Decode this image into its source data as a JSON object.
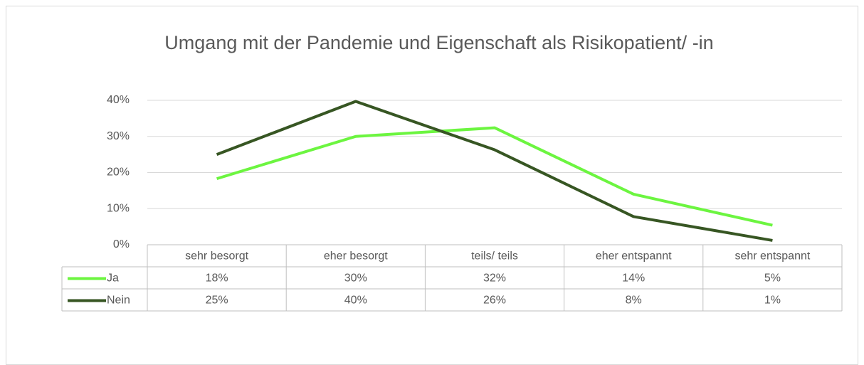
{
  "chart_data": {
    "type": "line",
    "title": "Umgang mit der Pandemie und Eigenschaft als Risikopatient/ -in",
    "categories": [
      "sehr besorgt",
      "eher besorgt",
      "teils/ teils",
      "eher entspannt",
      "sehr entspannt"
    ],
    "series": [
      {
        "name": "Ja",
        "color": "#6cf540",
        "values": [
          18.3,
          30,
          32.4,
          14,
          5.4
        ],
        "value_labels": [
          "18%",
          "30%",
          "32%",
          "14%",
          "5%"
        ]
      },
      {
        "name": "Nein",
        "color": "#375623",
        "values": [
          25,
          39.7,
          26.3,
          7.8,
          1.2
        ],
        "value_labels": [
          "25%",
          "40%",
          "26%",
          "8%",
          "1%"
        ]
      }
    ],
    "ylim": [
      0,
      40
    ],
    "yticks": [
      {
        "value": 0,
        "label": "0%"
      },
      {
        "value": 10,
        "label": "10%"
      },
      {
        "value": 20,
        "label": "20%"
      },
      {
        "value": 30,
        "label": "30%"
      },
      {
        "value": 40,
        "label": "40%"
      }
    ],
    "grid": true
  }
}
